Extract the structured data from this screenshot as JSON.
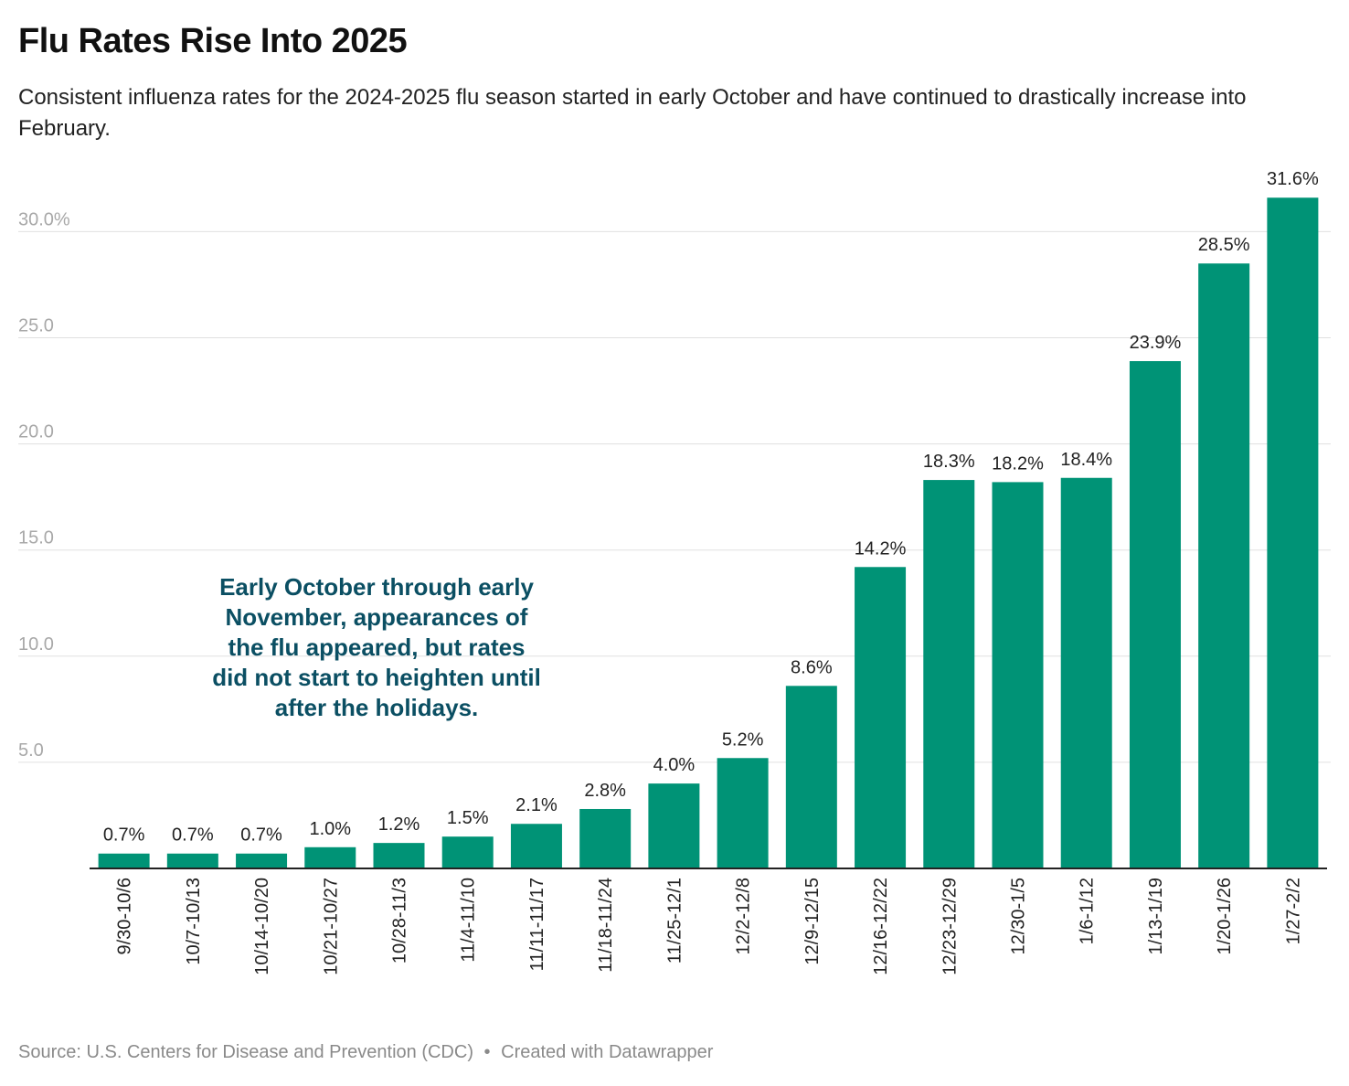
{
  "title": "Flu Rates Rise Into 2025",
  "subtitle": "Consistent influenza rates for the 2024-2025 flu season started in early October and have continued to drastically increase into February.",
  "annotation": "Early October through early November, appearances of the flu appeared, but rates did not start to heighten until after the holidays.",
  "footer": {
    "source": "Source: U.S. Centers for Disease and Prevention (CDC)",
    "separator": "•",
    "credit": "Created with Datawrapper"
  },
  "colors": {
    "bar": "#009376",
    "annotation": "#0b4f63",
    "grid": "#e0e0e0",
    "tick_label": "#a8a8a8",
    "axis": "#222222"
  },
  "chart_data": {
    "type": "bar",
    "title": "Flu Rates Rise Into 2025",
    "xlabel": "",
    "ylabel": "",
    "ylim": [
      0,
      32
    ],
    "yticks": [
      5,
      10,
      15,
      20,
      25,
      30
    ],
    "ytick_labels": [
      "5.0",
      "10.0",
      "15.0",
      "20.0",
      "25.0",
      "30.0%"
    ],
    "grid": true,
    "categories": [
      "9/30-10/6",
      "10/7-10/13",
      "10/14-10/20",
      "10/21-10/27",
      "10/28-11/3",
      "11/4-11/10",
      "11/11-11/17",
      "11/18-11/24",
      "11/25-12/1",
      "12/2-12/8",
      "12/9-12/15",
      "12/16-12/22",
      "12/23-12/29",
      "12/30-1/5",
      "1/6-1/12",
      "1/13-1/19",
      "1/20-1/26",
      "1/27-2/2"
    ],
    "values": [
      0.7,
      0.7,
      0.7,
      1.0,
      1.2,
      1.5,
      2.1,
      2.8,
      4.0,
      5.2,
      8.6,
      14.2,
      18.3,
      18.2,
      18.4,
      23.9,
      28.5,
      31.6
    ],
    "value_labels": [
      "0.7%",
      "0.7%",
      "0.7%",
      "1.0%",
      "1.2%",
      "1.5%",
      "2.1%",
      "2.8%",
      "4.0%",
      "5.2%",
      "8.6%",
      "14.2%",
      "18.3%",
      "18.2%",
      "18.4%",
      "23.9%",
      "28.5%",
      "31.6%"
    ]
  }
}
